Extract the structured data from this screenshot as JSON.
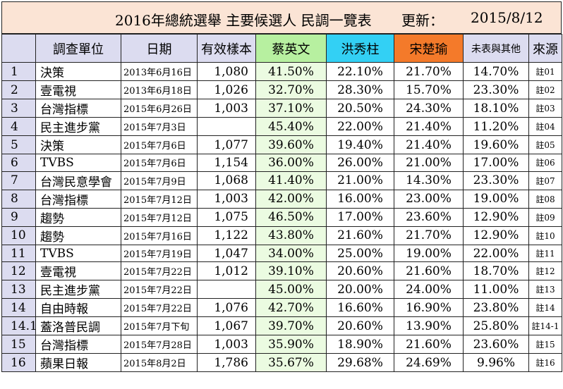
{
  "title": {
    "main": "2016年總統選舉 主要候選人 民調一覽表",
    "updated_label": "更新：",
    "updated_date": "2015/8/12"
  },
  "headers": {
    "idx": "",
    "org": "調查單位",
    "date": "日期",
    "sample": "有效樣本",
    "tsai": "蔡英文",
    "hung": "洪秀柱",
    "soong": "宋楚瑜",
    "other": "未表與其他",
    "source": "來源"
  },
  "colors": {
    "header_bg": "#dcdcf0",
    "title_bg": "#fbe4d5",
    "tsai": "#b7f0a0",
    "hung": "#33d0f4",
    "soong": "#f47a2a",
    "tsai_cell": "#ebfbe1"
  },
  "rows": [
    {
      "idx": "1",
      "org": "決策",
      "date": "2013年6月16日",
      "sample": "1,080",
      "tsai": "41.50%",
      "hung": "22.10%",
      "soong": "21.70%",
      "other": "14.70%",
      "source": "註01"
    },
    {
      "idx": "2",
      "org": "壹電視",
      "date": "2013年6月18日",
      "sample": "1,026",
      "tsai": "32.70%",
      "hung": "28.30%",
      "soong": "15.70%",
      "other": "23.30%",
      "source": "註02"
    },
    {
      "idx": "3",
      "org": "台灣指標",
      "date": "2015年6月26日",
      "sample": "1,003",
      "tsai": "37.10%",
      "hung": "20.50%",
      "soong": "24.30%",
      "other": "18.10%",
      "source": "註03"
    },
    {
      "idx": "4",
      "org": "民主進步黨",
      "date": "2015年7月3日",
      "sample": "",
      "tsai": "45.40%",
      "hung": "22.00%",
      "soong": "21.40%",
      "other": "11.20%",
      "source": "註04"
    },
    {
      "idx": "5",
      "org": "決策",
      "date": "2015年7月6日",
      "sample": "1,077",
      "tsai": "39.60%",
      "hung": "19.40%",
      "soong": "21.40%",
      "other": "19.60%",
      "source": "註05"
    },
    {
      "idx": "6",
      "org": "TVBS",
      "date": "2015年7月6日",
      "sample": "1,154",
      "tsai": "36.00%",
      "hung": "26.00%",
      "soong": "21.00%",
      "other": "17.00%",
      "source": "註06"
    },
    {
      "idx": "7",
      "org": "台灣民意學會",
      "date": "2015年7月9日",
      "sample": "1,068",
      "tsai": "41.40%",
      "hung": "21.00%",
      "soong": "14.30%",
      "other": "23.30%",
      "source": "註07"
    },
    {
      "idx": "8",
      "org": "台灣指標",
      "date": "2015年7月12日",
      "sample": "1,003",
      "tsai": "42.00%",
      "hung": "16.00%",
      "soong": "23.00%",
      "other": "19.00%",
      "source": "註08"
    },
    {
      "idx": "9",
      "org": "趨勢",
      "date": "2015年7月12日",
      "sample": "1,075",
      "tsai": "46.50%",
      "hung": "17.00%",
      "soong": "23.60%",
      "other": "12.90%",
      "source": "註09"
    },
    {
      "idx": "10",
      "org": "趨勢",
      "date": "2015年7月16日",
      "sample": "1,122",
      "tsai": "43.80%",
      "hung": "21.60%",
      "soong": "21.70%",
      "other": "12.90%",
      "source": "註10"
    },
    {
      "idx": "11",
      "org": "TVBS",
      "date": "2015年7月19日",
      "sample": "1,047",
      "tsai": "34.00%",
      "hung": "25.00%",
      "soong": "19.00%",
      "other": "22.00%",
      "source": "註11"
    },
    {
      "idx": "12",
      "org": "壹電視",
      "date": "2015年7月22日",
      "sample": "1,012",
      "tsai": "39.10%",
      "hung": "20.60%",
      "soong": "21.60%",
      "other": "18.70%",
      "source": "註12"
    },
    {
      "idx": "13",
      "org": "民主進步黨",
      "date": "2015年7月22日",
      "sample": "",
      "tsai": "45.00%",
      "hung": "20.00%",
      "soong": "24.00%",
      "other": "11.00%",
      "source": "註13"
    },
    {
      "idx": "14",
      "org": "自由時報",
      "date": "2015年7月22日",
      "sample": "1,076",
      "tsai": "42.70%",
      "hung": "16.60%",
      "soong": "16.90%",
      "other": "23.80%",
      "source": "註14"
    },
    {
      "idx": "14.1",
      "org": "蓋洛普民調",
      "date": "2015年7月下旬",
      "sample": "1,067",
      "tsai": "39.70%",
      "hung": "20.60%",
      "soong": "13.90%",
      "other": "25.80%",
      "source": "註14-1"
    },
    {
      "idx": "15",
      "org": "台灣指標",
      "date": "2015年7月28日",
      "sample": "1,003",
      "tsai": "35.90%",
      "hung": "18.90%",
      "soong": "21.60%",
      "other": "23.60%",
      "source": "註15"
    },
    {
      "idx": "16",
      "org": "蘋果日報",
      "date": "2015年8月2日",
      "sample": "1,786",
      "tsai": "35.67%",
      "hung": "29.68%",
      "soong": "24.69%",
      "other": "9.96%",
      "source": "註16"
    }
  ]
}
